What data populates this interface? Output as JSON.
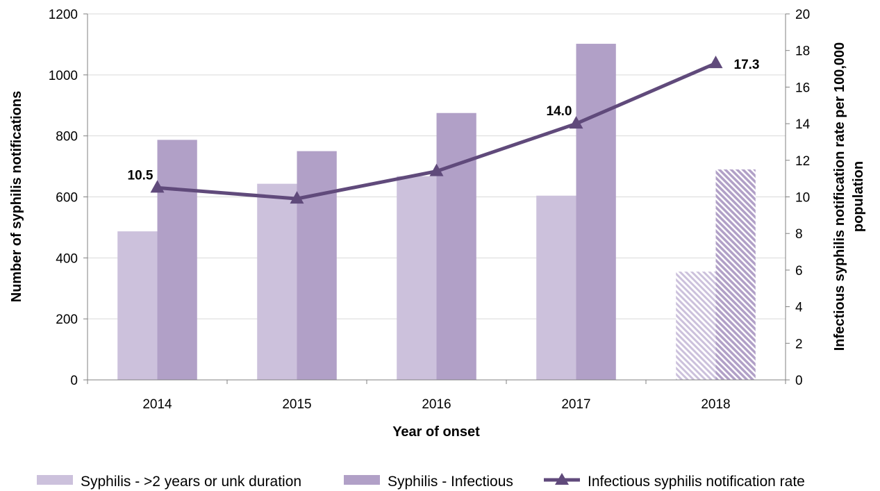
{
  "chart_data": {
    "type": "bar",
    "title": "",
    "xlabel": "Year of onset",
    "ylabel": "Number of syphilis notifications",
    "y2label_lines": [
      "Infectious syphilis notification rate per 100,000",
      "population"
    ],
    "categories": [
      "2014",
      "2015",
      "2016",
      "2017",
      "2018"
    ],
    "ylim": [
      0,
      1200
    ],
    "yticks": [
      "0",
      "200",
      "400",
      "600",
      "800",
      "1000",
      "1200"
    ],
    "y2lim": [
      0,
      20
    ],
    "y2ticks": [
      "0",
      "2",
      "4",
      "6",
      "8",
      "10",
      "12",
      "14",
      "16",
      "18",
      "20"
    ],
    "grid": true,
    "legend_position": "bottom",
    "series": [
      {
        "name": "Syphilis - >2 years or unk duration",
        "kind": "bar",
        "axis": "left",
        "color": "#ccc1dc",
        "values": [
          487,
          643,
          668,
          604,
          355
        ],
        "hatched": [
          false,
          false,
          false,
          false,
          true
        ]
      },
      {
        "name": "Syphilis - Infectious",
        "kind": "bar",
        "axis": "left",
        "color": "#b1a0c7",
        "values": [
          787,
          750,
          875,
          1102,
          690
        ],
        "hatched": [
          false,
          false,
          false,
          false,
          true
        ]
      },
      {
        "name": "Infectious syphilis notification rate",
        "kind": "line",
        "axis": "right",
        "color": "#604a7b",
        "marker": "triangle",
        "values": [
          10.5,
          9.9,
          11.4,
          14.0,
          17.3
        ],
        "labels": [
          "10.5",
          "",
          "",
          "14.0",
          "17.3"
        ]
      }
    ]
  }
}
